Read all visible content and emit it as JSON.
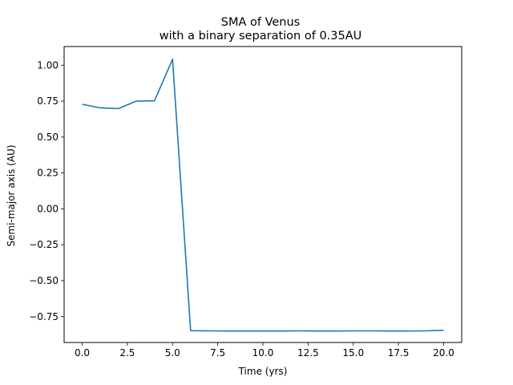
{
  "chart_data": {
    "type": "line",
    "title": "SMA of Venus",
    "subtitle": "with a binary separation of 0.35AU",
    "xlabel": "Time (yrs)",
    "ylabel": "Semi-major axis (AU)",
    "xlim": [
      -1.0,
      21.0
    ],
    "ylim": [
      -0.93,
      1.13
    ],
    "grid": false,
    "line_color": "#1f77b4",
    "x_ticks": [
      0.0,
      2.5,
      5.0,
      7.5,
      10.0,
      12.5,
      15.0,
      17.5,
      20.0
    ],
    "x_tick_labels": [
      "0.0",
      "2.5",
      "5.0",
      "7.5",
      "10.0",
      "12.5",
      "15.0",
      "17.5",
      "20.0"
    ],
    "y_ticks": [
      -0.75,
      -0.5,
      -0.25,
      0.0,
      0.25,
      0.5,
      0.75,
      1.0
    ],
    "y_tick_labels": [
      "−0.75",
      "−0.50",
      "−0.25",
      "0.00",
      "0.25",
      "0.50",
      "0.75",
      "1.00"
    ],
    "series": [
      {
        "x": [
          0,
          1,
          2,
          3,
          4,
          5,
          6,
          7,
          8,
          9,
          10,
          11,
          12,
          13,
          14,
          15,
          16,
          17,
          18,
          19,
          20
        ],
        "values": [
          0.728,
          0.703,
          0.698,
          0.75,
          0.752,
          1.042,
          -0.848,
          -0.849,
          -0.85,
          -0.85,
          -0.85,
          -0.85,
          -0.849,
          -0.85,
          -0.85,
          -0.849,
          -0.849,
          -0.85,
          -0.85,
          -0.849,
          -0.845
        ]
      }
    ]
  }
}
